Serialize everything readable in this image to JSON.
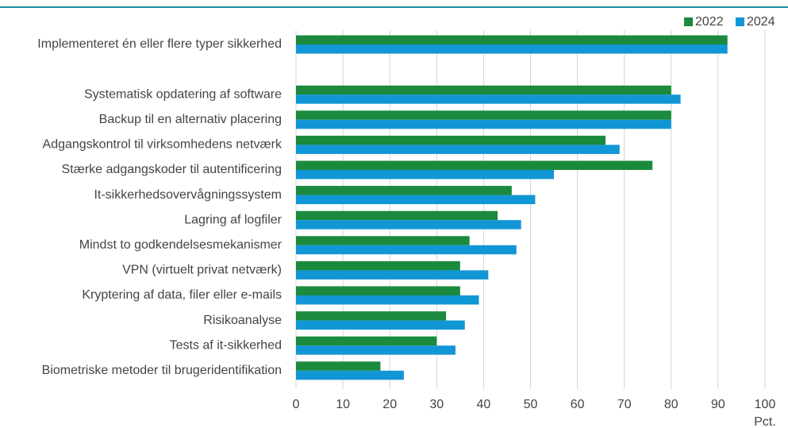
{
  "chart_data": {
    "type": "hbar",
    "categories": [
      "Implementeret én eller flere typer sikkerhed",
      null,
      "Systematisk opdatering af software",
      "Backup til en alternativ placering",
      "Adgangskontrol til virksomhedens netværk",
      "Stærke adgangskoder til autentificering",
      "It-sikkerhedsovervågningssystem",
      "Lagring af logfiler",
      "Mindst to godkendelsesmekanismer",
      "VPN (virtuelt privat netværk)",
      "Kryptering af data, filer eller e-mails",
      "Risikoanalyse",
      "Tests af it-sikkerhed",
      "Biometriske metoder til brugeridentifikation"
    ],
    "series": [
      {
        "name": "2022",
        "color": "#1b8a3c",
        "values": [
          92,
          null,
          80,
          80,
          66,
          76,
          46,
          43,
          37,
          35,
          35,
          32,
          30,
          18
        ]
      },
      {
        "name": "2024",
        "color": "#1196d6",
        "values": [
          92,
          null,
          82,
          80,
          69,
          55,
          51,
          48,
          47,
          41,
          39,
          36,
          34,
          23
        ]
      }
    ],
    "xlim": [
      0,
      100
    ],
    "xticks": [
      0,
      10,
      20,
      30,
      40,
      50,
      60,
      70,
      80,
      90,
      100
    ],
    "xlabel": "Pct.",
    "grid": true,
    "legend": "top-right"
  }
}
